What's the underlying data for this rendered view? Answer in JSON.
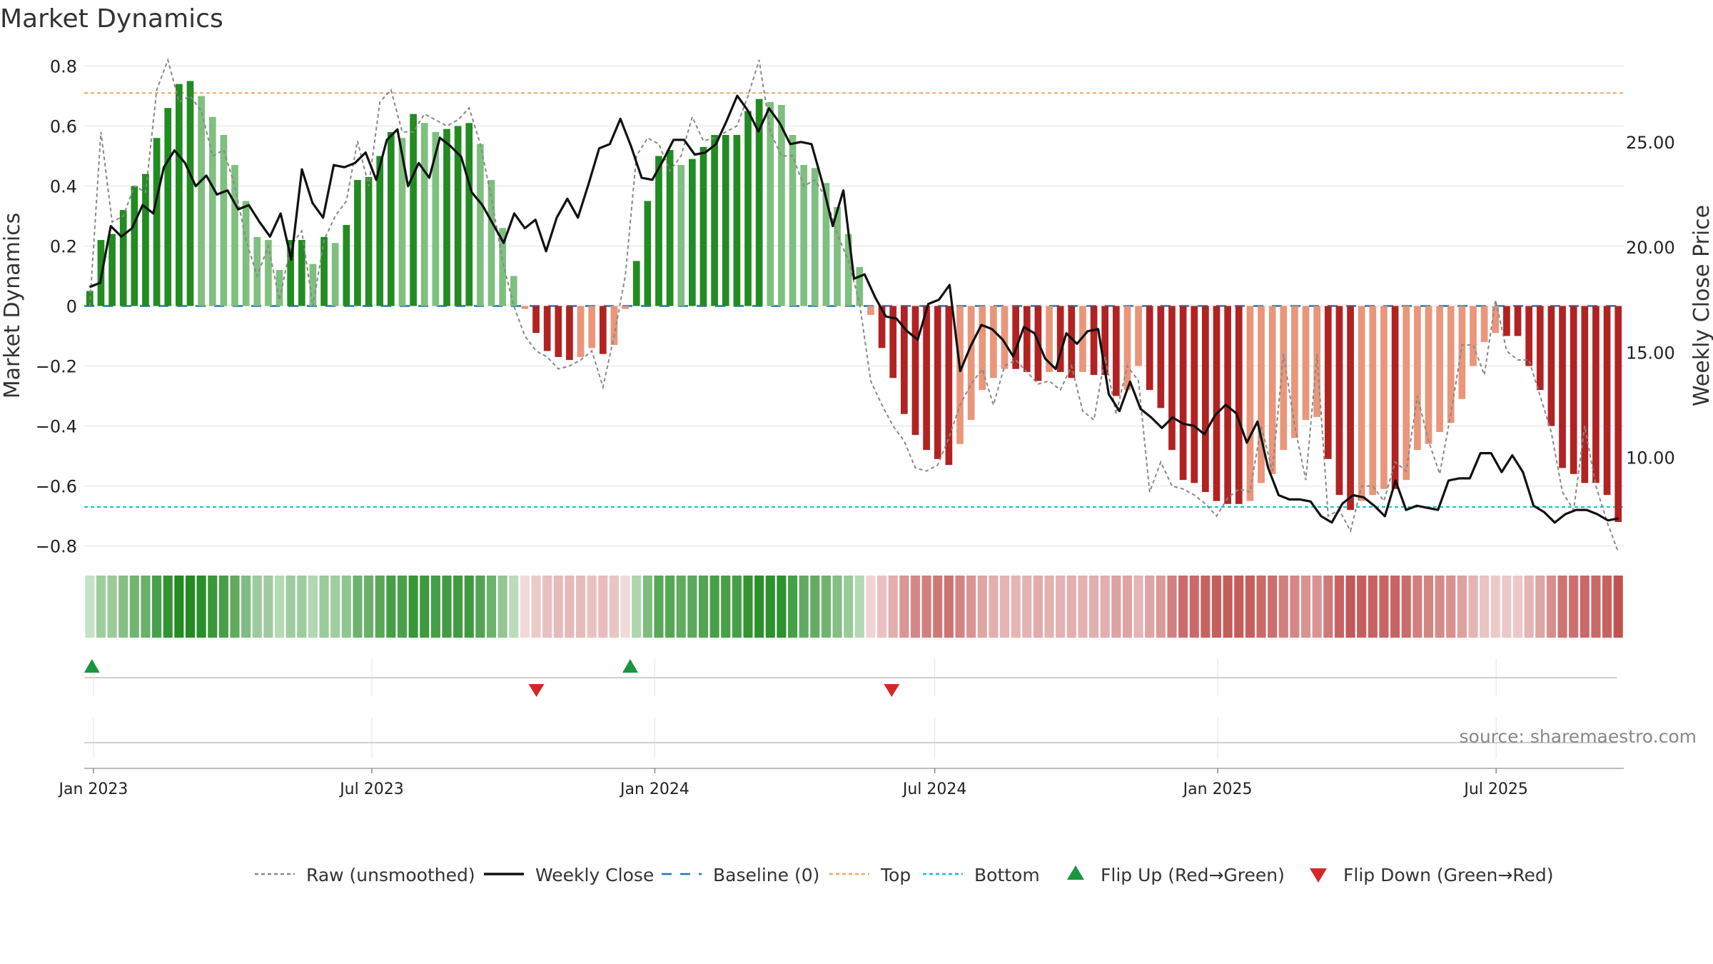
{
  "chart_data": {
    "type": "bar",
    "title": "Market Dynamics",
    "ylabel_left": "Market Dynamics",
    "ylabel_right": "Weekly Close Price",
    "ylim_left": [
      -0.82,
      0.82
    ],
    "ylim_right": [
      5.5,
      28.9
    ],
    "yticks_left": [
      {
        "value": 0.8,
        "label": "0.8"
      },
      {
        "value": 0.6,
        "label": "0.6"
      },
      {
        "value": 0.4,
        "label": "0.4"
      },
      {
        "value": 0.2,
        "label": "0.2"
      },
      {
        "value": 0,
        "label": "0"
      },
      {
        "value": -0.2,
        "label": "−0.2"
      },
      {
        "value": -0.4,
        "label": "−0.4"
      },
      {
        "value": -0.6,
        "label": "−0.6"
      },
      {
        "value": -0.8,
        "label": "−0.8"
      }
    ],
    "yticks_right": [
      {
        "value": 25,
        "label": "25.00"
      },
      {
        "value": 20,
        "label": "20.00"
      },
      {
        "value": 15,
        "label": "15.00"
      },
      {
        "value": 10,
        "label": "10.00"
      }
    ],
    "x_start": "2022-12-26",
    "x_end": "2025-09-22",
    "xticks": [
      {
        "date": "2023-01-01",
        "label": "Jan 2023"
      },
      {
        "date": "2023-07-01",
        "label": "Jul 2023"
      },
      {
        "date": "2024-01-01",
        "label": "Jan 2024"
      },
      {
        "date": "2024-07-01",
        "label": "Jul 2024"
      },
      {
        "date": "2025-01-01",
        "label": "Jan 2025"
      },
      {
        "date": "2025-07-01",
        "label": "Jul 2025"
      }
    ],
    "top_threshold": 0.71,
    "bottom_threshold": -0.67,
    "baseline": 0,
    "bar_dynamics": [
      0.05,
      0.22,
      0.24,
      0.32,
      0.4,
      0.44,
      0.56,
      0.66,
      0.74,
      0.75,
      0.7,
      0.63,
      0.57,
      0.47,
      0.35,
      0.23,
      0.22,
      0.12,
      0.22,
      0.22,
      0.14,
      0.23,
      0.21,
      0.27,
      0.42,
      0.43,
      0.5,
      0.58,
      0.56,
      0.64,
      0.61,
      0.58,
      0.59,
      0.6,
      0.61,
      0.54,
      0.42,
      0.26,
      0.1,
      -0.01,
      -0.09,
      -0.15,
      -0.17,
      -0.18,
      -0.17,
      -0.14,
      -0.16,
      -0.13,
      -0.01,
      0.15,
      0.35,
      0.5,
      0.52,
      0.47,
      0.49,
      0.53,
      0.57,
      0.57,
      0.57,
      0.65,
      0.69,
      0.68,
      0.67,
      0.57,
      0.47,
      0.46,
      0.41,
      0.33,
      0.24,
      0.13,
      -0.03,
      -0.14,
      -0.24,
      -0.36,
      -0.43,
      -0.48,
      -0.51,
      -0.53,
      -0.46,
      -0.38,
      -0.28,
      -0.24,
      -0.21,
      -0.21,
      -0.22,
      -0.25,
      -0.22,
      -0.22,
      -0.24,
      -0.22,
      -0.23,
      -0.23,
      -0.3,
      -0.28,
      -0.2,
      -0.28,
      -0.34,
      -0.48,
      -0.58,
      -0.59,
      -0.62,
      -0.65,
      -0.66,
      -0.66,
      -0.65,
      -0.59,
      -0.56,
      -0.48,
      -0.44,
      -0.38,
      -0.37,
      -0.51,
      -0.63,
      -0.68,
      -0.65,
      -0.63,
      -0.61,
      -0.61,
      -0.58,
      -0.48,
      -0.46,
      -0.42,
      -0.39,
      -0.31,
      -0.2,
      -0.12,
      -0.09,
      -0.1,
      -0.1,
      -0.2,
      -0.28,
      -0.4,
      -0.54,
      -0.56,
      -0.59,
      -0.59,
      -0.63,
      -0.72
    ],
    "raw_dynamics": [
      0.0,
      0.58,
      0.28,
      0.3,
      0.4,
      0.38,
      0.72,
      0.82,
      0.68,
      0.7,
      0.65,
      0.5,
      0.52,
      0.4,
      0.22,
      0.1,
      0.2,
      0.02,
      0.2,
      0.25,
      0.0,
      0.22,
      0.3,
      0.35,
      0.55,
      0.4,
      0.68,
      0.72,
      0.58,
      0.58,
      0.64,
      0.62,
      0.6,
      0.62,
      0.66,
      0.54,
      0.36,
      0.15,
      0.0,
      -0.1,
      -0.15,
      -0.17,
      -0.21,
      -0.2,
      -0.18,
      -0.15,
      -0.27,
      -0.1,
      0.1,
      0.5,
      0.56,
      0.54,
      0.45,
      0.5,
      0.63,
      0.55,
      0.56,
      0.58,
      0.6,
      0.7,
      0.82,
      0.58,
      0.5,
      0.5,
      0.4,
      0.42,
      0.36,
      0.24,
      0.15,
      0.01,
      -0.25,
      -0.33,
      -0.4,
      -0.45,
      -0.54,
      -0.55,
      -0.53,
      -0.44,
      -0.33,
      -0.26,
      -0.21,
      -0.33,
      -0.2,
      -0.18,
      -0.22,
      -0.26,
      -0.25,
      -0.28,
      -0.2,
      -0.35,
      -0.38,
      -0.17,
      -0.36,
      -0.2,
      -0.25,
      -0.62,
      -0.52,
      -0.6,
      -0.61,
      -0.63,
      -0.66,
      -0.7,
      -0.64,
      -0.61,
      -0.62,
      -0.4,
      -0.55,
      -0.16,
      -0.4,
      -0.58,
      -0.16,
      -0.7,
      -0.68,
      -0.75,
      -0.6,
      -0.6,
      -0.65,
      -0.52,
      -0.55,
      -0.3,
      -0.45,
      -0.56,
      -0.36,
      -0.13,
      -0.13,
      -0.23,
      0.02,
      -0.15,
      -0.18,
      -0.18,
      -0.3,
      -0.42,
      -0.62,
      -0.68,
      -0.4,
      -0.6,
      -0.72,
      -0.82
    ],
    "weekly_close": [
      18.1,
      18.3,
      21.0,
      20.5,
      20.9,
      22.0,
      21.6,
      23.8,
      24.6,
      24.0,
      22.9,
      23.4,
      22.5,
      22.7,
      21.8,
      22.0,
      21.2,
      20.5,
      21.6,
      19.4,
      23.7,
      22.1,
      21.4,
      23.9,
      23.8,
      24.0,
      24.5,
      23.2,
      25.1,
      25.6,
      22.9,
      24.0,
      23.3,
      25.2,
      24.8,
      24.3,
      22.6,
      22.0,
      21.1,
      20.2,
      21.6,
      20.9,
      21.3,
      19.8,
      21.4,
      22.3,
      21.4,
      23.0,
      24.7,
      24.9,
      26.1,
      24.8,
      23.3,
      23.2,
      24.1,
      25.1,
      25.1,
      24.4,
      24.5,
      24.9,
      26.0,
      27.2,
      26.5,
      25.5,
      26.6,
      25.9,
      24.9,
      25.0,
      24.9,
      23.1,
      21.0,
      22.7,
      18.5,
      18.7,
      17.6,
      16.7,
      16.6,
      16.0,
      15.6,
      17.3,
      17.5,
      18.2,
      14.1,
      15.3,
      16.3,
      16.1,
      15.6,
      14.8,
      16.2,
      15.9,
      14.7,
      14.2,
      15.9,
      15.4,
      16.0,
      16.1,
      13.0,
      12.2,
      13.6,
      12.3,
      11.9,
      11.4,
      11.9,
      11.6,
      11.5,
      11.1,
      12.0,
      12.5,
      12.1,
      10.7,
      11.7,
      9.5,
      8.2,
      8.0,
      8.0,
      7.9,
      7.2,
      6.9,
      7.8,
      8.2,
      8.1,
      7.7,
      7.2,
      8.9,
      7.5,
      7.7,
      7.6,
      7.5,
      8.9,
      9.0,
      9.0,
      10.2,
      10.2,
      9.3,
      10.1,
      9.3,
      7.7,
      7.4,
      6.9,
      7.3,
      7.5,
      7.5,
      7.3,
      7.0,
      7.1
    ],
    "flips_up": [
      "2022-12-31",
      "2023-12-16"
    ],
    "flips_down": [
      "2023-10-16",
      "2024-06-03"
    ],
    "legend": [
      {
        "label": "Raw (unsmoothed)",
        "kind": "dashed-line",
        "color": "#888888"
      },
      {
        "label": "Weekly Close",
        "kind": "solid-line",
        "color": "#111111"
      },
      {
        "label": "Baseline (0)",
        "kind": "dash-line",
        "color": "#1f77b4"
      },
      {
        "label": "Top",
        "kind": "dotted-line",
        "color": "#f4a460"
      },
      {
        "label": "Bottom",
        "kind": "dotted-line",
        "color": "#17becf"
      },
      {
        "label": "Flip Up (Red→Green)",
        "kind": "triangle-up",
        "color": "#1a9641"
      },
      {
        "label": "Flip Down (Green→Red)",
        "kind": "triangle-down",
        "color": "#d62728"
      }
    ],
    "colors": {
      "strong_positive": "#228b22",
      "weak_positive": "#7fbf7f",
      "strong_negative": "#b22222",
      "weak_negative": "#e9967a",
      "raw_line": "#888888",
      "close_line": "#111111",
      "baseline": "#1f77b4",
      "top": "#f4a460",
      "bottom": "#17becf",
      "flip_up": "#1a9641",
      "flip_down": "#d62728"
    }
  },
  "source": "source: sharemaestro.com"
}
